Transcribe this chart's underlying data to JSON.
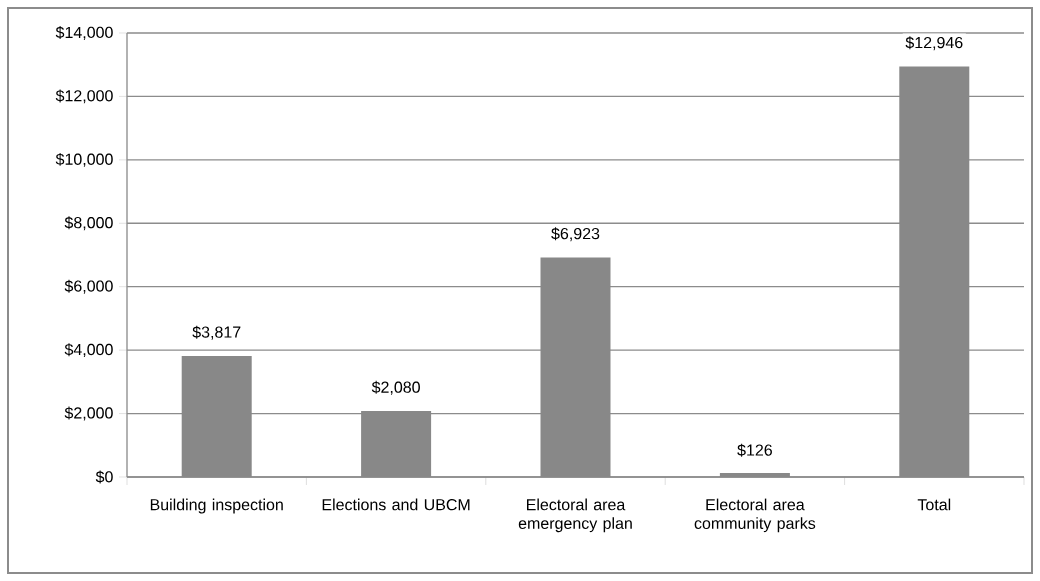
{
  "chart_data": {
    "type": "bar",
    "categories": [
      "Building inspection",
      "Elections and UBCM",
      "Electoral area emergency plan",
      "Electoral area community parks",
      "Total"
    ],
    "values": [
      3817,
      2080,
      6923,
      126,
      12946
    ],
    "value_labels": [
      "$3,817",
      "$2,080",
      "$6,923",
      "$126",
      "$12,946"
    ],
    "color": "#888888",
    "ylim": [
      0,
      14000
    ],
    "yticks": [
      {
        "value": 0,
        "label": "$0"
      },
      {
        "value": 2000,
        "label": "$2,000"
      },
      {
        "value": 4000,
        "label": "$4,000"
      },
      {
        "value": 6000,
        "label": "$6,000"
      },
      {
        "value": 8000,
        "label": "$8,000"
      },
      {
        "value": 10000,
        "label": "$10,000"
      },
      {
        "value": 12000,
        "label": "$12,000"
      },
      {
        "value": 14000,
        "label": "$14,000"
      }
    ],
    "grid": "y"
  }
}
